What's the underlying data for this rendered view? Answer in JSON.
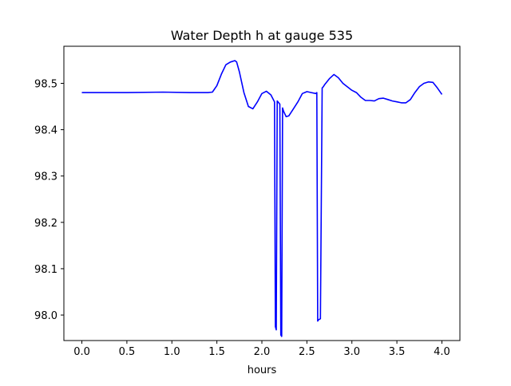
{
  "chart_data": {
    "type": "line",
    "title": "Water Depth h at gauge 535",
    "xlabel": "hours",
    "ylabel": "",
    "xlim": [
      -0.2,
      4.2
    ],
    "ylim": [
      97.945,
      98.58
    ],
    "xticks": [
      0.0,
      0.5,
      1.0,
      1.5,
      2.0,
      2.5,
      3.0,
      3.5,
      4.0
    ],
    "xtick_labels": [
      "0.0",
      "0.5",
      "1.0",
      "1.5",
      "2.0",
      "2.5",
      "3.0",
      "3.5",
      "4.0"
    ],
    "yticks": [
      98.0,
      98.1,
      98.2,
      98.3,
      98.4,
      98.5
    ],
    "ytick_labels": [
      "98.0",
      "98.1",
      "98.2",
      "98.3",
      "98.4",
      "98.5"
    ],
    "grid": false,
    "series": [
      {
        "name": "",
        "color": "#0000ff",
        "x": [
          0.0,
          0.5,
          0.9,
          1.2,
          1.4,
          1.45,
          1.5,
          1.55,
          1.6,
          1.65,
          1.7,
          1.72,
          1.75,
          1.8,
          1.85,
          1.9,
          1.95,
          2.0,
          2.05,
          2.1,
          2.14,
          2.15,
          2.16,
          2.17,
          2.2,
          2.21,
          2.22,
          2.23,
          2.24,
          2.27,
          2.3,
          2.35,
          2.4,
          2.45,
          2.5,
          2.55,
          2.6,
          2.61,
          2.62,
          2.63,
          2.65,
          2.67,
          2.68,
          2.7,
          2.75,
          2.8,
          2.85,
          2.9,
          3.0,
          3.05,
          3.1,
          3.15,
          3.2,
          3.25,
          3.3,
          3.35,
          3.4,
          3.45,
          3.5,
          3.55,
          3.6,
          3.65,
          3.7,
          3.75,
          3.8,
          3.85,
          3.9,
          3.95,
          4.0
        ],
        "y": [
          98.48,
          98.48,
          98.481,
          98.48,
          98.48,
          98.481,
          98.495,
          98.52,
          98.54,
          98.546,
          98.549,
          98.546,
          98.525,
          98.48,
          98.45,
          98.445,
          98.46,
          98.478,
          98.483,
          98.475,
          98.46,
          97.975,
          97.968,
          98.462,
          98.455,
          97.957,
          97.954,
          98.447,
          98.44,
          98.428,
          98.43,
          98.445,
          98.46,
          98.478,
          98.482,
          98.48,
          98.478,
          98.48,
          97.987,
          97.99,
          97.992,
          98.49,
          98.492,
          98.498,
          98.51,
          98.519,
          98.512,
          98.5,
          98.485,
          98.48,
          98.47,
          98.463,
          98.463,
          98.462,
          98.467,
          98.468,
          98.465,
          98.462,
          98.46,
          98.458,
          98.458,
          98.465,
          98.48,
          98.493,
          98.5,
          98.503,
          98.502,
          98.49,
          98.476
        ]
      }
    ]
  }
}
